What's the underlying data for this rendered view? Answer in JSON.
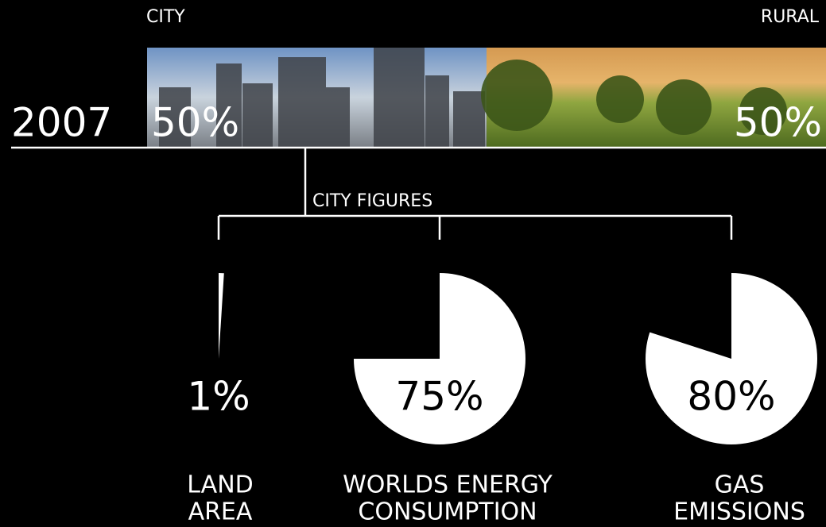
{
  "split": {
    "city": {
      "label": "CITY",
      "value": 50,
      "value_label": "50%"
    },
    "rural": {
      "label": "RURAL",
      "value": 50,
      "value_label": "50%"
    },
    "year": "2007"
  },
  "figures": {
    "title": "CITY FIGURES",
    "items": [
      {
        "value": 1,
        "value_label": "1%",
        "label_lines": [
          "LAND",
          "AREA"
        ]
      },
      {
        "value": 75,
        "value_label": "75%",
        "label_lines": [
          "WORLDS ENERGY",
          "CONSUMPTION"
        ]
      },
      {
        "value": 80,
        "value_label": "80%",
        "label_lines": [
          "GAS",
          "EMISSIONS"
        ]
      }
    ]
  }
}
